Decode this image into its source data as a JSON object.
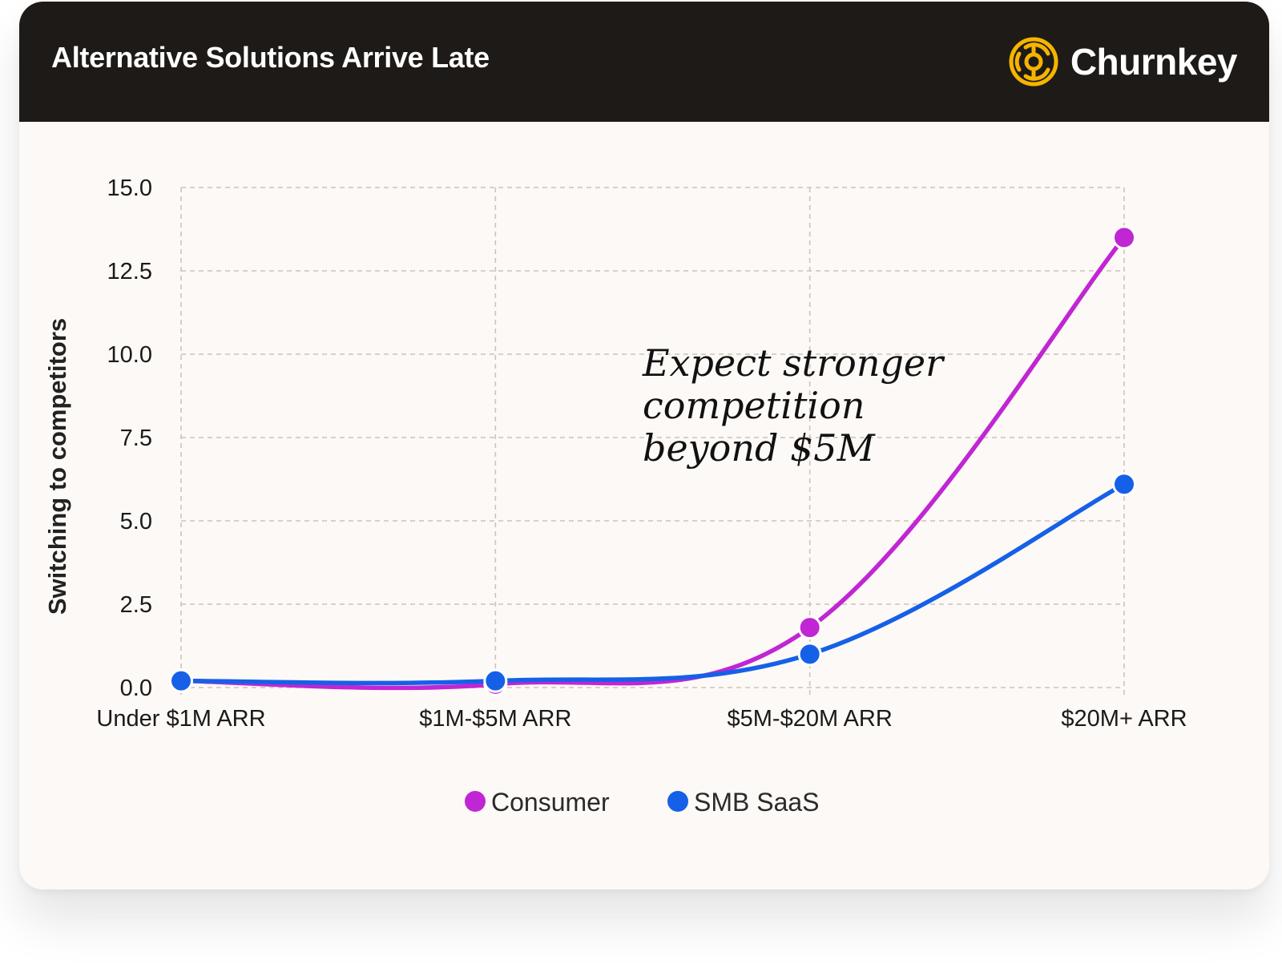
{
  "header": {
    "title": "Alternative Solutions Arrive Late",
    "brand_name": "Churnkey",
    "brand_logo_icon": "churnkey-target-logo-icon",
    "background_color": "#1e1a17",
    "logo_color": "#f5b400"
  },
  "chart_data": {
    "type": "line",
    "title": "Alternative Solutions Arrive Late",
    "xlabel": "",
    "ylabel": "Switching to competitors",
    "categories": [
      "Under $1M ARR",
      "$1M-$5M ARR",
      "$5M-$20M ARR",
      "$20M+ ARR"
    ],
    "ylim": [
      0,
      15
    ],
    "yticks": [
      "0.0",
      "2.5",
      "5.0",
      "7.5",
      "10.0",
      "12.5",
      "15.0"
    ],
    "ytick_values": [
      0,
      2.5,
      5,
      7.5,
      10,
      12.5,
      15
    ],
    "grid": true,
    "grid_style": "dashed",
    "legend_position": "bottom-center",
    "series": [
      {
        "name": "Consumer",
        "values": [
          0.2,
          0.1,
          1.8,
          13.5
        ],
        "color": "#c026d3"
      },
      {
        "name": "SMB SaaS",
        "values": [
          0.2,
          0.2,
          1.0,
          6.1
        ],
        "color": "#1660e8"
      }
    ],
    "annotation": {
      "lines": [
        "Expect stronger",
        "competition",
        "beyond $5M"
      ]
    }
  }
}
